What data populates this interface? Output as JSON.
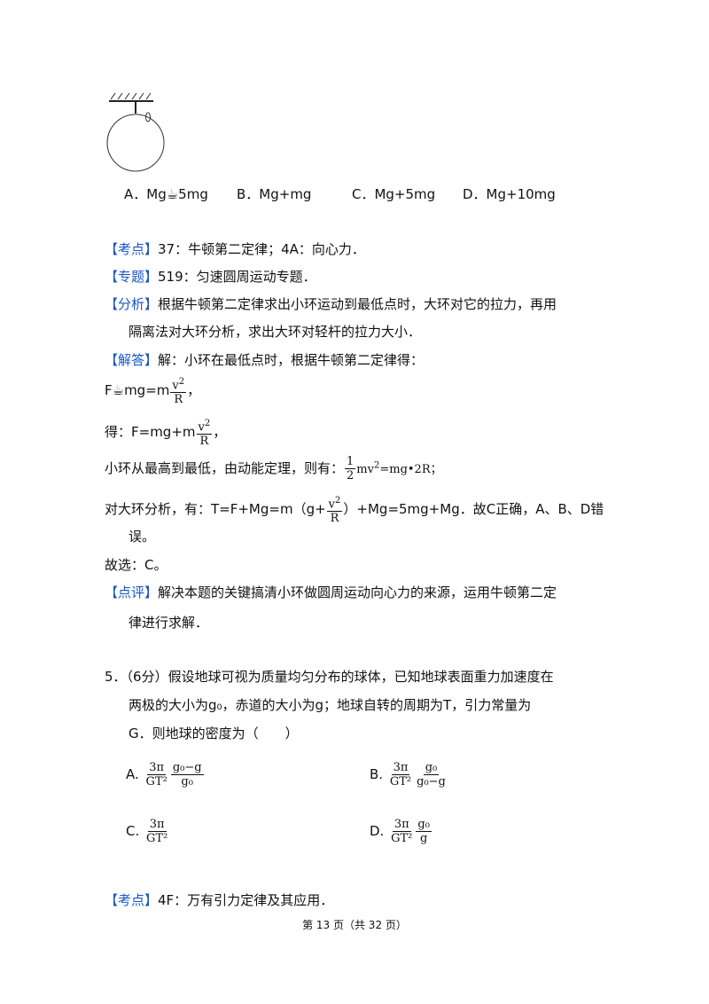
{
  "q4_options": [
    "A．Mg☕5mg",
    "B．Mg+mg",
    "C．Mg+5mg",
    "D．Mg+10mg"
  ],
  "kaodian": {
    "tag": "【考点】",
    "text": "37：牛顿第二定律；4A：向心力．"
  },
  "zhuanti": {
    "tag": "【专题】",
    "text": "519：匀速圆周运动专题．"
  },
  "fenxi": {
    "tag": "【分析】",
    "line1": "根据牛顿第二定律求出小环运动到最低点时，大环对它的拉力，再用",
    "line2": "隔离法对大环分析，求出大环对轻杆的拉力大小．"
  },
  "jieda": {
    "tag": "【解答】",
    "line1": "解：小环在最低点时，根据牛顿第二定律得：",
    "eq1_left": "F☕mg=m",
    "eq1_tail": "，",
    "eq2_left": "得：F=mg+m",
    "eq2_tail": "，",
    "v2": "v",
    "sq": "2",
    "R": "R",
    "eq3_left": "小环从最高到最低，由动能定理，则有：",
    "eq3_num": "1",
    "eq3_den": "2",
    "eq3_right": "mv",
    "eq3_tail": "=mg•2R；",
    "eq4_left": "对大环分析，有：T=F+Mg=m（g+",
    "eq4_right": "）+Mg=5mg+Mg．故C正确，A、B、D错",
    "eq4_cont": "误。",
    "choice": "故选：C。"
  },
  "dianping": {
    "tag": "【点评】",
    "line1": "解决本题的关键搞清小环做圆周运动向心力的来源，运用牛顿第二定",
    "line2": "律进行求解．"
  },
  "q5": {
    "num": "5．",
    "line1": "（6分）假设地球可视为质量均匀分布的球体，已知地球表面重力加速度在",
    "line2": "两极的大小为g₀，赤道的大小为g；地球自转的周期为T，引力常量为",
    "line3": "G．则地球的密度为（　　）",
    "options": [
      {
        "label": "A.",
        "n1": "3π",
        "d1": "GT²",
        "n2": "g₀−g",
        "d2": "g₀"
      },
      {
        "label": "B.",
        "n1": "3π",
        "d1": "GT²",
        "n2": "g₀",
        "d2": "g₀−g"
      },
      {
        "label": "C.",
        "n1": "3π",
        "d1": "GT²"
      },
      {
        "label": "D.",
        "n1": "3π",
        "d1": "GT²",
        "n2": "g₀",
        "d2": "g"
      }
    ]
  },
  "kaodian2": {
    "tag": "【考点】",
    "text": "4F：万有引力定律及其应用．"
  },
  "footer": "第 13 页（共 32 页）"
}
